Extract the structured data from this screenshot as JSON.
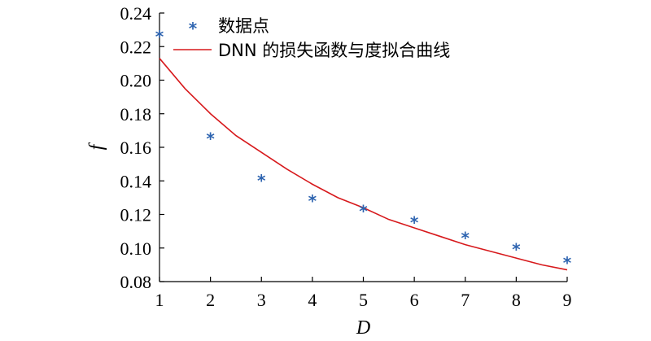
{
  "chart_data": {
    "type": "scatter",
    "title": "",
    "xlabel": "D",
    "ylabel": "f",
    "xlim": [
      1,
      9
    ],
    "ylim": [
      0.08,
      0.24
    ],
    "x_ticks": [
      "1",
      "2",
      "3",
      "4",
      "5",
      "6",
      "7",
      "8",
      "9"
    ],
    "y_ticks": [
      "0.08",
      "0.10",
      "0.12",
      "0.14",
      "0.16",
      "0.18",
      "0.20",
      "0.22",
      "0.24"
    ],
    "grid": false,
    "legend_position": "top-left",
    "series": [
      {
        "name": "数据点",
        "kind": "scatter",
        "marker": "asterisk",
        "marker_glyph": "*",
        "color": "#2e64b0",
        "x": [
          1,
          2,
          3,
          4,
          5,
          6,
          7,
          8,
          9
        ],
        "y": [
          0.228,
          0.167,
          0.142,
          0.13,
          0.124,
          0.117,
          0.108,
          0.101,
          0.093
        ]
      },
      {
        "name": "DNN 的损失函数与度拟合曲线",
        "kind": "line",
        "color": "#d7191c",
        "x": [
          1.0,
          1.5,
          2.0,
          2.5,
          3.0,
          3.5,
          4.0,
          4.5,
          5.0,
          5.5,
          6.0,
          6.5,
          7.0,
          7.5,
          8.0,
          8.5,
          9.0
        ],
        "y": [
          0.213,
          0.195,
          0.18,
          0.167,
          0.157,
          0.147,
          0.138,
          0.13,
          0.124,
          0.117,
          0.112,
          0.107,
          0.102,
          0.098,
          0.094,
          0.09,
          0.087
        ]
      }
    ]
  }
}
